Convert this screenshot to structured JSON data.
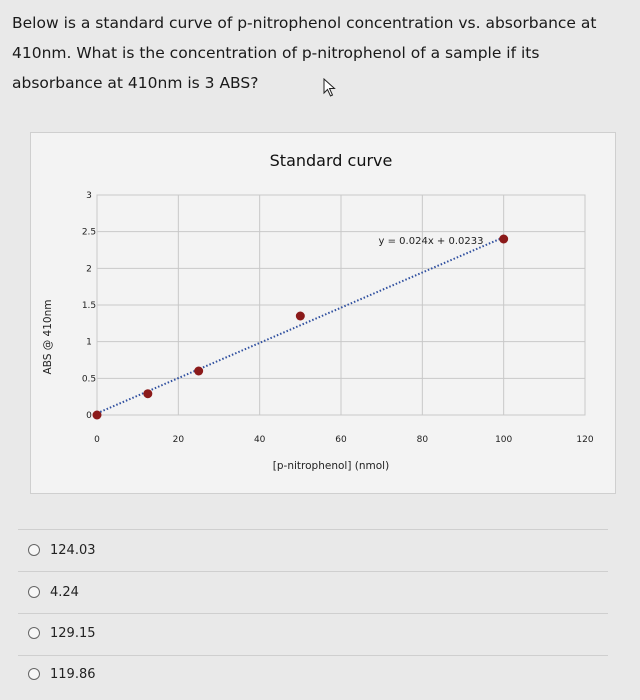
{
  "question": {
    "lines": [
      "Below is a standard curve of p-nitrophenol concentration vs. absorbance at",
      "410nm. What is the concentration of p-nitrophenol of a sample if its",
      "absorbance at 410nm is 3 ABS?"
    ]
  },
  "chart_data": {
    "type": "scatter",
    "title": "Standard curve",
    "xlabel": "[p-nitrophenol] (nmol)",
    "ylabel": "ABS @ 410nm",
    "xlim": [
      0,
      120
    ],
    "ylim": [
      0,
      3
    ],
    "xticks": [
      "0",
      "20",
      "40",
      "60",
      "80",
      "100",
      "120"
    ],
    "yticks": [
      "0",
      "0.5",
      "1",
      "1.5",
      "2",
      "2.5",
      "3"
    ],
    "x": [
      0,
      12.5,
      25,
      50,
      100
    ],
    "y": [
      0,
      0.29,
      0.6,
      1.35,
      2.4
    ],
    "trendline": {
      "slope": 0.024,
      "intercept": 0.0233,
      "x_range": [
        0,
        100
      ],
      "style": "dotted"
    },
    "equation_label": "y = 0.024x + 0.0233",
    "grid": true,
    "marker_color": "#8b1a1a",
    "trendline_color": "#2f4f9f"
  },
  "options": [
    {
      "label": "124.03"
    },
    {
      "label": "4.24"
    },
    {
      "label": "129.15"
    },
    {
      "label": "119.86"
    }
  ]
}
